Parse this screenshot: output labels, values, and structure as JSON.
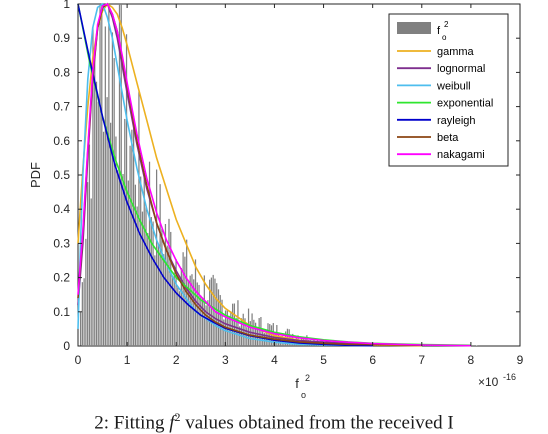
{
  "chart_data": {
    "type": "line",
    "title": "",
    "xlabel": "f",
    "xlabel_sub": "o",
    "xlabel_sup": "2",
    "ylabel": "PDF",
    "x_multiplier": "×10",
    "x_multiplier_exp": "-16",
    "xlim": [
      0,
      9
    ],
    "ylim": [
      0,
      1
    ],
    "x_ticks": [
      "0",
      "1",
      "2",
      "3",
      "4",
      "5",
      "6",
      "7",
      "8",
      "9"
    ],
    "y_ticks": [
      "0",
      "0.1",
      "0.2",
      "0.3",
      "0.4",
      "0.5",
      "0.6",
      "0.7",
      "0.8",
      "0.9",
      "1"
    ],
    "grid": false,
    "legend_position": "top-right",
    "histogram": {
      "label": "f",
      "label_sub": "o",
      "label_sup": "2",
      "color": "#808080",
      "data_max": 8.5,
      "profile_x": [
        0.05,
        0.2,
        0.35,
        0.5,
        0.65,
        0.8,
        1.0,
        1.3,
        1.6,
        2.0,
        2.5,
        3.0,
        3.5,
        4.0,
        4.5,
        5.0,
        6.0,
        7.0,
        8.5
      ],
      "profile_y": [
        0.1,
        0.55,
        0.82,
        0.95,
        0.9,
        0.8,
        0.65,
        0.5,
        0.38,
        0.26,
        0.18,
        0.12,
        0.075,
        0.05,
        0.03,
        0.015,
        0.005,
        0.003,
        0.001
      ]
    },
    "series": [
      {
        "name": "gamma",
        "color": "#edb120",
        "x": [
          0,
          0.1,
          0.2,
          0.3,
          0.4,
          0.5,
          0.6,
          0.7,
          0.8,
          0.9,
          1.0,
          1.2,
          1.4,
          1.6,
          1.8,
          2.0,
          2.2,
          2.4,
          2.6,
          2.8,
          3.0,
          3.5,
          4.0,
          4.5,
          5.0,
          5.5,
          6.0,
          6.5,
          7.0
        ],
        "y": [
          0.3,
          0.52,
          0.7,
          0.84,
          0.93,
          0.98,
          1.0,
          0.99,
          0.97,
          0.93,
          0.88,
          0.77,
          0.66,
          0.55,
          0.46,
          0.37,
          0.3,
          0.23,
          0.18,
          0.14,
          0.11,
          0.06,
          0.03,
          0.017,
          0.009,
          0.005,
          0.003,
          0.002,
          0.001
        ]
      },
      {
        "name": "lognormal",
        "color": "#7e2f8e",
        "x": [
          0,
          0.1,
          0.2,
          0.3,
          0.4,
          0.5,
          0.6,
          0.7,
          0.8,
          0.9,
          1.0,
          1.2,
          1.4,
          1.6,
          1.8,
          2.0,
          2.2,
          2.4,
          2.6,
          2.8,
          3.0,
          3.5,
          4.0,
          4.5,
          5.0,
          5.5,
          6.0,
          6.5,
          7.0
        ],
        "y": [
          0.12,
          0.3,
          0.55,
          0.78,
          0.93,
          0.99,
          1.0,
          0.96,
          0.9,
          0.82,
          0.74,
          0.59,
          0.46,
          0.36,
          0.28,
          0.22,
          0.17,
          0.13,
          0.1,
          0.08,
          0.065,
          0.04,
          0.025,
          0.016,
          0.011,
          0.008,
          0.006,
          0.004,
          0.003
        ]
      },
      {
        "name": "weibull",
        "color": "#4dbeee",
        "x": [
          0,
          0.05,
          0.1,
          0.2,
          0.3,
          0.4,
          0.5,
          0.6,
          0.7,
          0.8,
          0.9,
          1.0,
          1.2,
          1.4,
          1.6,
          1.8,
          2.0,
          2.2,
          2.4,
          2.6,
          2.8,
          3.0,
          3.5,
          4.0,
          4.5,
          5.0,
          6.0
        ],
        "y": [
          0.05,
          0.3,
          0.5,
          0.78,
          0.93,
          0.99,
          1.0,
          0.96,
          0.9,
          0.82,
          0.74,
          0.66,
          0.52,
          0.4,
          0.31,
          0.24,
          0.18,
          0.14,
          0.1,
          0.08,
          0.06,
          0.045,
          0.022,
          0.011,
          0.005,
          0.003,
          0.001
        ]
      },
      {
        "name": "exponential",
        "color": "#2ee62e",
        "x": [
          0,
          0.25,
          0.5,
          0.75,
          1.0,
          1.25,
          1.5,
          1.75,
          2.0,
          2.5,
          3.0,
          3.5,
          4.0,
          4.5,
          5.0,
          5.5,
          6.0,
          7.0,
          8.0
        ],
        "y": [
          1.0,
          0.82,
          0.67,
          0.55,
          0.45,
          0.37,
          0.3,
          0.25,
          0.2,
          0.135,
          0.09,
          0.06,
          0.04,
          0.027,
          0.018,
          0.012,
          0.008,
          0.004,
          0.002
        ]
      },
      {
        "name": "rayleigh",
        "color": "#0000cc",
        "x": [
          0,
          0.25,
          0.5,
          0.75,
          1.0,
          1.25,
          1.5,
          1.75,
          2.0,
          2.25,
          2.5,
          2.75,
          3.0,
          3.5,
          4.0,
          4.5,
          5.0,
          5.5,
          6.0
        ],
        "y": [
          1.0,
          0.83,
          0.67,
          0.53,
          0.42,
          0.33,
          0.26,
          0.2,
          0.155,
          0.12,
          0.09,
          0.07,
          0.052,
          0.03,
          0.017,
          0.009,
          0.005,
          0.002,
          0.001
        ]
      },
      {
        "name": "beta",
        "color": "#8b4513",
        "x": [
          0,
          0.1,
          0.2,
          0.3,
          0.4,
          0.5,
          0.6,
          0.7,
          0.8,
          0.9,
          1.0,
          1.2,
          1.4,
          1.6,
          1.8,
          2.0,
          2.2,
          2.4,
          2.6,
          2.8,
          3.0,
          3.5,
          4.0,
          4.5,
          5.0,
          5.5,
          6.0,
          6.5,
          7.0
        ],
        "y": [
          0.14,
          0.33,
          0.57,
          0.79,
          0.93,
          0.99,
          1.0,
          0.97,
          0.92,
          0.84,
          0.76,
          0.6,
          0.47,
          0.36,
          0.28,
          0.21,
          0.16,
          0.12,
          0.09,
          0.07,
          0.055,
          0.032,
          0.02,
          0.012,
          0.008,
          0.005,
          0.004,
          0.003,
          0.002
        ]
      },
      {
        "name": "nakagami",
        "color": "#ff00ff",
        "x": [
          0,
          0.1,
          0.2,
          0.3,
          0.4,
          0.5,
          0.6,
          0.7,
          0.8,
          0.9,
          1.0,
          1.2,
          1.4,
          1.6,
          1.8,
          2.0,
          2.2,
          2.4,
          2.6,
          2.8,
          3.0,
          3.5,
          4.0,
          4.5,
          5.0,
          5.5,
          6.0,
          6.5,
          7.0,
          8.0
        ],
        "y": [
          0.15,
          0.34,
          0.58,
          0.8,
          0.94,
          0.995,
          1.0,
          0.97,
          0.92,
          0.85,
          0.77,
          0.62,
          0.49,
          0.39,
          0.31,
          0.25,
          0.2,
          0.16,
          0.13,
          0.1,
          0.085,
          0.055,
          0.036,
          0.024,
          0.016,
          0.011,
          0.007,
          0.005,
          0.003,
          0.001
        ]
      }
    ]
  },
  "caption": {
    "text_prefix": "2: Fitting",
    "var": "f",
    "sup": "2",
    "text_suffix": "values obtained from the received I"
  }
}
